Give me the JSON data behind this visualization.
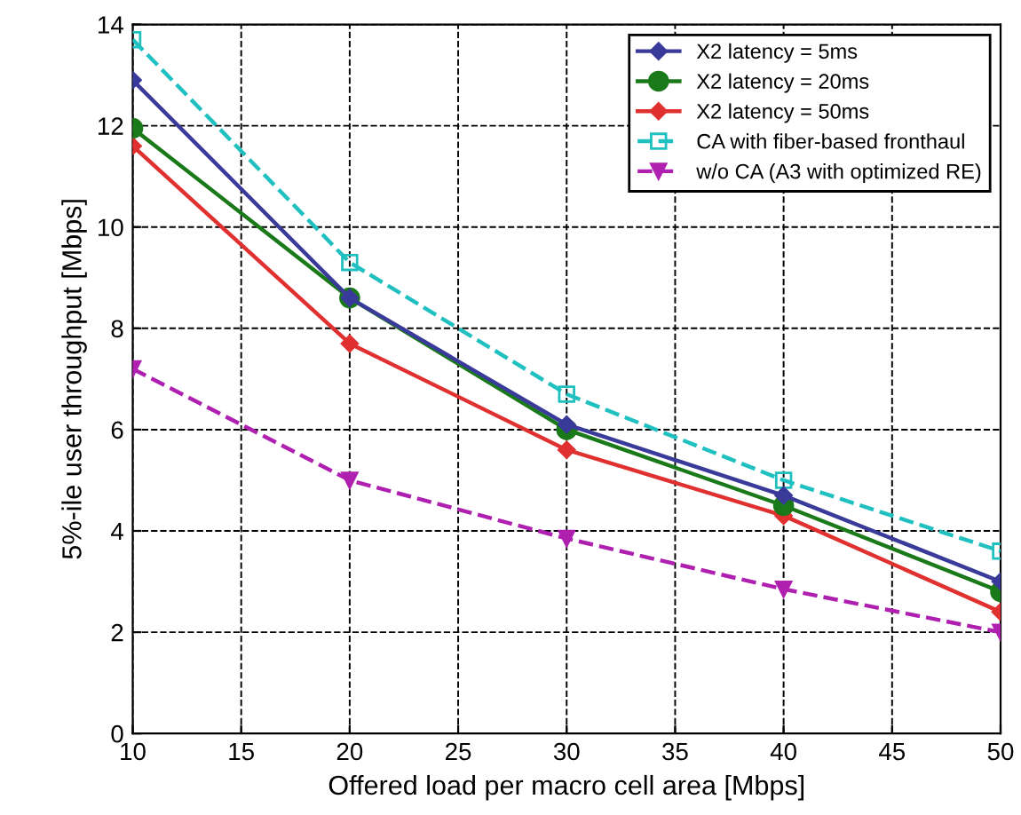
{
  "chart_data": {
    "type": "line",
    "xlabel": "Offered load per macro cell area [Mbps]",
    "ylabel": "5%-ile user throughput [Mbps]",
    "x": [
      10,
      20,
      30,
      40,
      50
    ],
    "series": [
      {
        "name": "X2 latency = 5ms",
        "color": "#3a3a9a",
        "marker": "diamond",
        "line_style": "solid",
        "values": [
          12.9,
          8.6,
          6.1,
          4.7,
          3.0
        ]
      },
      {
        "name": "X2 latency = 20ms",
        "color": "#1a7a1a",
        "marker": "circle",
        "line_style": "solid",
        "values": [
          11.95,
          8.6,
          6.0,
          4.5,
          2.8
        ]
      },
      {
        "name": "X2 latency = 50ms",
        "color": "#e03030",
        "marker": "diamond",
        "line_style": "solid",
        "values": [
          11.6,
          7.7,
          5.6,
          4.3,
          2.4
        ]
      },
      {
        "name": "CA with fiber-based fronthaul",
        "color": "#20c0c0",
        "marker": "square",
        "line_style": "dashed",
        "values": [
          13.7,
          9.3,
          6.7,
          5.0,
          3.6
        ]
      },
      {
        "name": "w/o CA (A3 with optimized RE)",
        "color": "#b020b0",
        "marker": "triangle",
        "line_style": "dashed",
        "values": [
          7.2,
          5.0,
          3.85,
          2.85,
          2.0
        ]
      }
    ],
    "xlim": [
      10,
      50
    ],
    "xticks": [
      10,
      15,
      20,
      25,
      30,
      35,
      40,
      45,
      50
    ],
    "ylim": [
      0,
      14
    ],
    "yticks": [
      0,
      2,
      4,
      6,
      8,
      10,
      12,
      14
    ],
    "grid": true,
    "legend": "top right"
  }
}
